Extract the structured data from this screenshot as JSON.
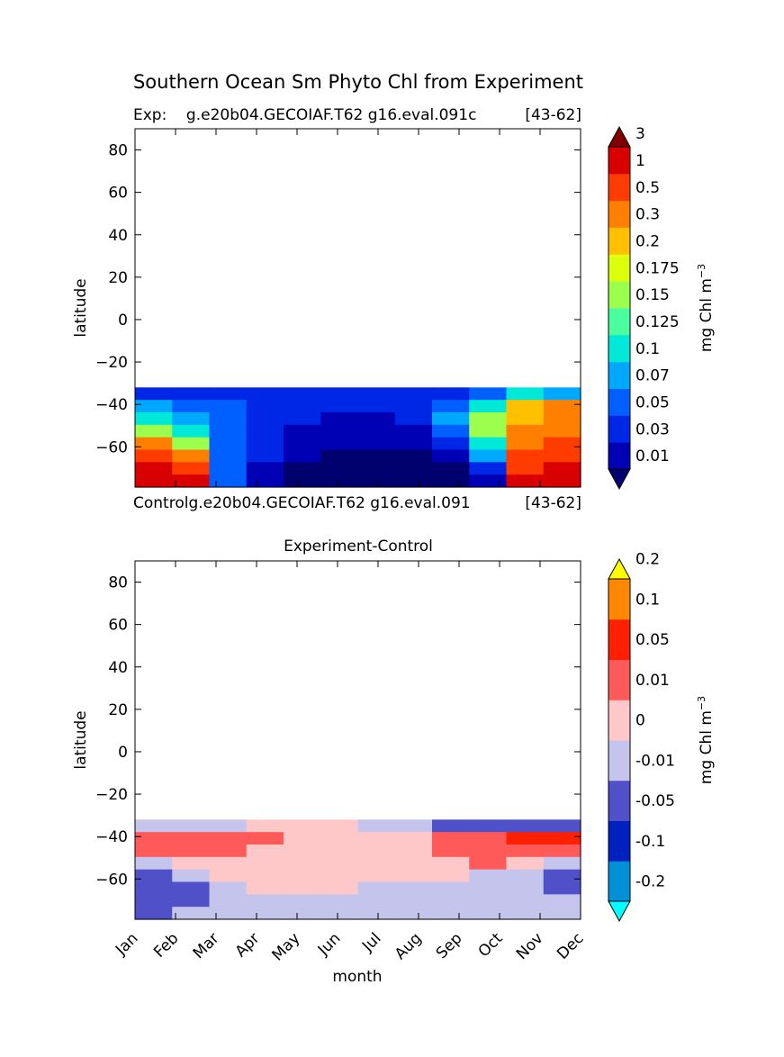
{
  "figure": {
    "title": "Southern Ocean Sm Phyto Chl from Experiment",
    "top_left_label": "Exp:    g.e20b04.GECOIAF.T62 g16.eval.091c",
    "top_right_label": "[43-62]",
    "bottom_left_label": "Controlg.e20b04.GECOIAF.T62 g16.eval.091",
    "bottom_right_label": "[43-62]",
    "diff_title": "Experiment-Control",
    "ylabel": "latitude",
    "xlabel": "month",
    "colorbar_label": "mg Chl m",
    "colorbar_exp": "−3"
  },
  "chart_data": [
    {
      "type": "heatmap",
      "title": "Exp:    g.e20b04.GECOIAF.T62 g16.eval.091c",
      "ylabel": "latitude",
      "ylim": [
        -79,
        90
      ],
      "yticks": [
        80,
        60,
        40,
        20,
        0,
        -20,
        -40,
        -60
      ],
      "x": [
        "Jan",
        "Feb",
        "Mar",
        "Apr",
        "May",
        "Jun",
        "Jul",
        "Aug",
        "Sep",
        "Oct",
        "Nov",
        "Dec"
      ],
      "data_lat_range": [
        -79,
        -32
      ],
      "colorbar": {
        "label": "mg Chl m−3",
        "levels": [
          "0.01",
          "0.03",
          "0.05",
          "0.07",
          "0.1",
          "0.125",
          "0.15",
          "0.175",
          "0.2",
          "0.3",
          "0.5",
          "1",
          "3"
        ],
        "colors": [
          "#00006e",
          "#0000b5",
          "#0026e6",
          "#0060ff",
          "#00a8ff",
          "#00e8d8",
          "#4aff9e",
          "#9cff4e",
          "#dcff0c",
          "#ffc000",
          "#ff8000",
          "#ff3c00",
          "#d80000",
          "#800000"
        ],
        "extend": "both"
      },
      "grid_rows_lat": [
        -34,
        -40,
        -46,
        -52,
        -58,
        -64,
        -70,
        -76
      ],
      "values": [
        [
          0.04,
          0.04,
          0.04,
          0.04,
          0.03,
          0.03,
          0.03,
          0.03,
          0.04,
          0.06,
          0.1,
          0.09
        ],
        [
          0.08,
          0.06,
          0.05,
          0.04,
          0.03,
          0.03,
          0.03,
          0.04,
          0.06,
          0.12,
          0.2,
          0.3
        ],
        [
          0.1,
          0.08,
          0.06,
          0.04,
          0.03,
          0.02,
          0.02,
          0.03,
          0.07,
          0.15,
          0.25,
          0.35
        ],
        [
          0.15,
          0.1,
          0.06,
          0.04,
          0.02,
          0.01,
          0.01,
          0.02,
          0.06,
          0.15,
          0.3,
          0.4
        ],
        [
          0.3,
          0.15,
          0.06,
          0.03,
          0.02,
          0.01,
          0.01,
          0.01,
          0.04,
          0.12,
          0.35,
          0.5
        ],
        [
          0.8,
          0.3,
          0.06,
          0.03,
          0.01,
          0.005,
          0.005,
          0.005,
          0.02,
          0.08,
          0.5,
          0.8
        ],
        [
          2.0,
          0.6,
          0.05,
          0.02,
          0.005,
          0.005,
          0.005,
          0.005,
          0.005,
          0.04,
          0.8,
          1.5
        ],
        [
          2.5,
          1.0,
          0.05,
          0.01,
          0.005,
          0.005,
          0.005,
          0.005,
          0.005,
          0.02,
          1.0,
          1.5
        ]
      ]
    },
    {
      "type": "heatmap",
      "title": "Experiment-Control",
      "xlabel": "month",
      "ylabel": "latitude",
      "ylim": [
        -79,
        90
      ],
      "yticks": [
        80,
        60,
        40,
        20,
        0,
        -20,
        -40,
        -60
      ],
      "x": [
        "Jan",
        "Feb",
        "Mar",
        "Apr",
        "May",
        "Jun",
        "Jul",
        "Aug",
        "Sep",
        "Oct",
        "Nov",
        "Dec"
      ],
      "data_lat_range": [
        -79,
        -32
      ],
      "colorbar": {
        "label": "mg Chl m−3",
        "levels": [
          "-0.2",
          "-0.1",
          "-0.05",
          "-0.01",
          "0",
          "0.01",
          "0.05",
          "0.1",
          "0.2"
        ],
        "colors": [
          "#00ffff",
          "#0090d8",
          "#0020c0",
          "#5050c8",
          "#c4c4ec",
          "#ffc8c8",
          "#ff5a5a",
          "#ff2000",
          "#ff8800",
          "#ffff00"
        ],
        "extend": "both"
      },
      "grid_rows_lat": [
        -34,
        -40,
        -46,
        -52,
        -58,
        -64,
        -70,
        -76
      ],
      "values": [
        [
          -0.005,
          -0.005,
          -0.005,
          0.005,
          0.005,
          0.005,
          -0.005,
          -0.005,
          -0.02,
          -0.05,
          -0.02,
          -0.02
        ],
        [
          0.02,
          0.02,
          0.02,
          0.02,
          0.005,
          0.005,
          0.005,
          0.005,
          0.02,
          0.02,
          0.06,
          0.06
        ],
        [
          0.02,
          0.02,
          0.02,
          0.005,
          0.005,
          0.005,
          0.005,
          0.005,
          0.02,
          0.02,
          0.03,
          0.02
        ],
        [
          -0.005,
          0.005,
          0.005,
          0.005,
          0.005,
          0.005,
          0.005,
          0.005,
          0.005,
          0.02,
          0.005,
          -0.005
        ],
        [
          -0.02,
          -0.005,
          0.005,
          0.005,
          0.005,
          0.005,
          0.005,
          0.005,
          0.005,
          -0.005,
          -0.005,
          -0.02
        ],
        [
          -0.02,
          -0.02,
          -0.005,
          0.005,
          0.005,
          0.005,
          -0.005,
          -0.005,
          -0.005,
          -0.005,
          -0.005,
          -0.02
        ],
        [
          -0.02,
          -0.02,
          -0.005,
          -0.005,
          -0.005,
          -0.005,
          -0.005,
          -0.005,
          -0.005,
          -0.005,
          -0.005,
          -0.005
        ],
        [
          -0.02,
          -0.005,
          -0.005,
          -0.005,
          -0.005,
          -0.005,
          -0.005,
          -0.005,
          -0.005,
          -0.005,
          -0.005,
          -0.005
        ]
      ]
    }
  ]
}
